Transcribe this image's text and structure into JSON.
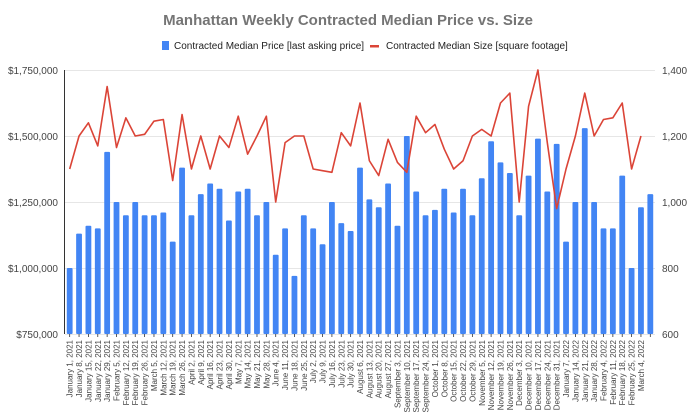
{
  "chart_data": {
    "type": "bar",
    "title": "Manhattan Weekly Contracted Median Price vs. Size",
    "legend_position": "top",
    "grid": true,
    "xlabel": "",
    "ylabel_left": "",
    "ylabel_right": "",
    "ylim_left": [
      750000,
      1750000
    ],
    "ylim_right": [
      600,
      1400
    ],
    "left_ticks": [
      "$750,000",
      "$1,000,000",
      "$1,250,000",
      "$1,500,000",
      "$1,750,000"
    ],
    "left_tick_values": [
      750000,
      1000000,
      1250000,
      1500000,
      1750000
    ],
    "right_ticks": [
      "600",
      "800",
      "1,000",
      "1,200",
      "1,400"
    ],
    "right_tick_values": [
      600,
      800,
      1000,
      1200,
      1400
    ],
    "categories": [
      "January 1, 2021",
      "January 8, 2021",
      "January 15, 2021",
      "January 22, 2021",
      "January 29, 2021",
      "February 5, 2021",
      "February 12, 2021",
      "February 19, 2021",
      "February 26, 2021",
      "March 5, 2021",
      "March 12, 2021",
      "March 19, 2021",
      "March 26, 2021",
      "April 2, 2021",
      "April 9, 2021",
      "April 16, 2021",
      "April 23, 2021",
      "April 30, 2021",
      "May 7, 2021",
      "May 14, 2021",
      "May 21, 2021",
      "May 28, 2021",
      "June 4, 2021",
      "June 11, 2021",
      "June 18, 2021",
      "June 25, 2021",
      "July 2, 2021",
      "July 9, 2021",
      "July 16, 2021",
      "July 23, 2021",
      "July 30, 2021",
      "August 6, 2021",
      "August 13, 2021",
      "August 20, 2021",
      "August 27, 2021",
      "September 3, 2021",
      "September 10, 2021",
      "September 17, 2021",
      "September 24, 2021",
      "October 1, 2021",
      "October 8, 2021",
      "October 15, 2021",
      "October 22, 2021",
      "October 29, 2021",
      "November 5, 2021",
      "November 12, 2021",
      "November 19, 2021",
      "November 26, 2021",
      "December 3, 2021",
      "December 10, 2021",
      "December 17, 2021",
      "December 24, 2021",
      "December 31, 2021",
      "January 7, 2022",
      "January 14, 2022",
      "January 21, 2022",
      "January 28, 2022",
      "February 4, 2022",
      "February 11, 2022",
      "February 18, 2022",
      "February 25, 2022",
      "March 4, 2022",
      ""
    ],
    "series": [
      {
        "name": "Contracted Median Price [last asking price]",
        "type": "bar",
        "axis": "left",
        "color": "#4285f4",
        "values": [
          1000000,
          1130000,
          1160000,
          1150000,
          1440000,
          1250000,
          1200000,
          1250000,
          1200000,
          1200000,
          1210000,
          1100000,
          1380000,
          1200000,
          1280000,
          1320000,
          1300000,
          1180000,
          1290000,
          1300000,
          1200000,
          1250000,
          1050000,
          1150000,
          970000,
          1200000,
          1150000,
          1090000,
          1250000,
          1170000,
          1140000,
          1380000,
          1260000,
          1230000,
          1320000,
          1160000,
          1500000,
          1290000,
          1200000,
          1220000,
          1300000,
          1210000,
          1300000,
          1200000,
          1340000,
          1480000,
          1400000,
          1360000,
          1200000,
          1350000,
          1490000,
          1290000,
          1470000,
          1100000,
          1250000,
          1530000,
          1250000,
          1150000,
          1150000,
          1350000,
          1000000,
          1230000,
          1280000
        ]
      },
      {
        "name": "Contracted Median Size [square footage]",
        "type": "line",
        "axis": "right",
        "color": "#db4437",
        "values": [
          1100,
          1200,
          1240,
          1170,
          1350,
          1165,
          1255,
          1200,
          1205,
          1245,
          1250,
          1065,
          1265,
          1100,
          1200,
          1100,
          1200,
          1165,
          1260,
          1145,
          1200,
          1260,
          1000,
          1180,
          1200,
          1200,
          1100,
          1095,
          1090,
          1210,
          1170,
          1300,
          1125,
          1080,
          1190,
          1120,
          1090,
          1260,
          1210,
          1235,
          1160,
          1100,
          1125,
          1200,
          1220,
          1200,
          1300,
          1330,
          1000,
          1290,
          1400,
          1180,
          980,
          1100,
          1200,
          1330,
          1200,
          1250,
          1255,
          1300,
          1100,
          1200,
          null
        ]
      }
    ]
  }
}
